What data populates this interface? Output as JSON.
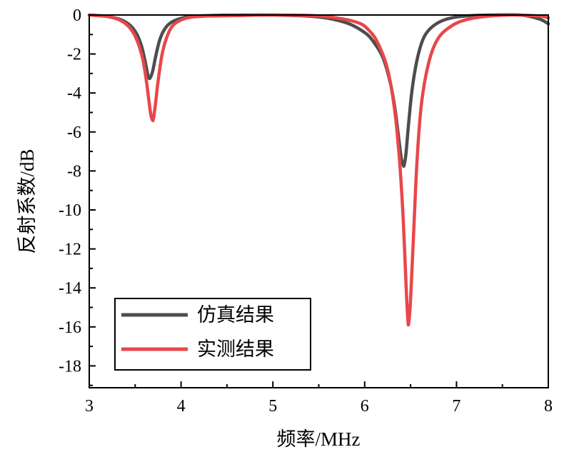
{
  "chart_data": {
    "type": "line",
    "xlabel": "频率/MHz",
    "ylabel": "反射系数/dB",
    "xlim": [
      3,
      8
    ],
    "ylim": [
      -19,
      0
    ],
    "xticks": [
      3,
      4,
      5,
      6,
      7,
      8
    ],
    "yticks": [
      0,
      -2,
      -4,
      -6,
      -8,
      -10,
      -12,
      -14,
      -16,
      -18
    ],
    "legend_position": "bottom-left",
    "grid": false,
    "series": [
      {
        "name": "仿真结果",
        "color": "#4d4d4d",
        "x": [
          3.0,
          3.2,
          3.35,
          3.45,
          3.52,
          3.57,
          3.61,
          3.64,
          3.66,
          3.69,
          3.72,
          3.76,
          3.8,
          3.86,
          3.95,
          4.1,
          4.4,
          5.0,
          5.5,
          5.8,
          6.0,
          6.1,
          6.2,
          6.28,
          6.33,
          6.37,
          6.4,
          6.42,
          6.43,
          6.45,
          6.48,
          6.52,
          6.58,
          6.65,
          6.75,
          6.9,
          7.1,
          7.4,
          7.7,
          7.9,
          8.0
        ],
        "y": [
          0,
          -0.08,
          -0.25,
          -0.55,
          -1.0,
          -1.6,
          -2.4,
          -3.1,
          -3.25,
          -2.9,
          -2.2,
          -1.4,
          -0.9,
          -0.5,
          -0.25,
          -0.08,
          -0.02,
          0,
          -0.1,
          -0.4,
          -0.9,
          -1.4,
          -2.2,
          -3.5,
          -4.8,
          -6.3,
          -7.4,
          -7.7,
          -7.7,
          -7.1,
          -5.5,
          -3.7,
          -2.1,
          -1.1,
          -0.55,
          -0.2,
          -0.05,
          0,
          0,
          -0.2,
          -0.45
        ]
      },
      {
        "name": "实测结果",
        "color": "#e8474a",
        "x": [
          3.0,
          3.2,
          3.35,
          3.45,
          3.52,
          3.58,
          3.62,
          3.65,
          3.67,
          3.69,
          3.7,
          3.72,
          3.75,
          3.79,
          3.84,
          3.9,
          3.98,
          4.1,
          4.3,
          4.6,
          5.0,
          5.5,
          5.9,
          6.05,
          6.15,
          6.25,
          6.33,
          6.38,
          6.42,
          6.45,
          6.47,
          6.48,
          6.5,
          6.53,
          6.57,
          6.62,
          6.7,
          6.8,
          6.95,
          7.1,
          7.3,
          7.6,
          7.9,
          8.0
        ],
        "y": [
          0,
          -0.08,
          -0.3,
          -0.7,
          -1.3,
          -2.2,
          -3.3,
          -4.4,
          -5.1,
          -5.4,
          -5.3,
          -4.6,
          -3.4,
          -2.1,
          -1.2,
          -0.6,
          -0.3,
          -0.12,
          -0.05,
          -0.03,
          0,
          -0.05,
          -0.35,
          -0.8,
          -1.5,
          -2.8,
          -5.0,
          -7.5,
          -10.5,
          -13.8,
          -15.6,
          -15.8,
          -14.6,
          -11.5,
          -7.5,
          -4.5,
          -2.4,
          -1.2,
          -0.55,
          -0.25,
          -0.08,
          0,
          -0.05,
          -0.15
        ]
      }
    ]
  }
}
